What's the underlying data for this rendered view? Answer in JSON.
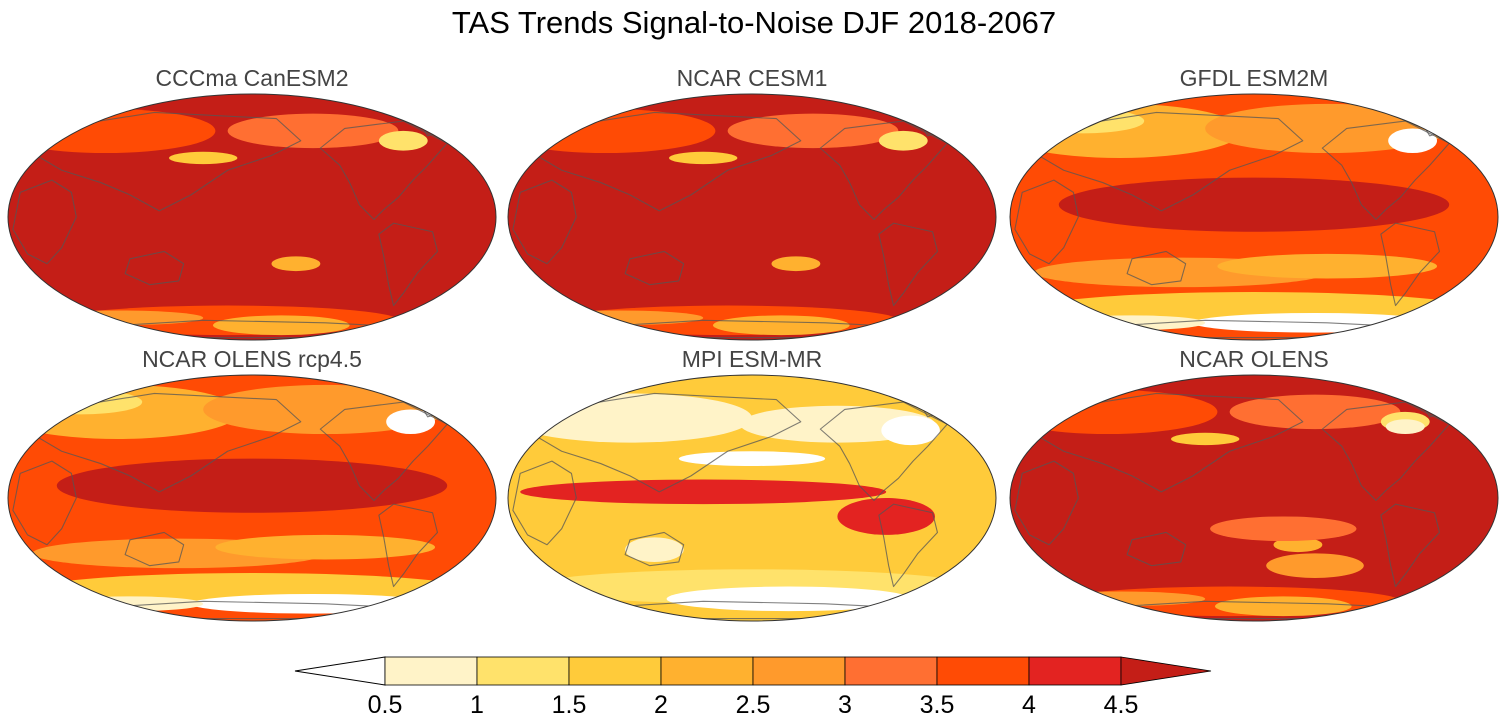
{
  "chart_data": {
    "type": "heatmap",
    "title": "TAS Trends Signal-to-Noise DJF 2018-2067",
    "panels": [
      {
        "title": "CCCma CanESM2",
        "variant": "high"
      },
      {
        "title": "NCAR CESM1",
        "variant": "high"
      },
      {
        "title": "GFDL ESM2M",
        "variant": "medium"
      },
      {
        "title": "NCAR OLENS rcp4.5",
        "variant": "medium"
      },
      {
        "title": "MPI ESM-MR",
        "variant": "low"
      },
      {
        "title": "NCAR OLENS",
        "variant": "high"
      }
    ],
    "colorbar": {
      "levels": [
        "0.5",
        "1",
        "1.5",
        "2",
        "2.5",
        "3",
        "3.5",
        "4",
        "4.5"
      ],
      "colors": [
        "#ffffff",
        "#fff3c8",
        "#ffe26b",
        "#ffcb3a",
        "#ffb12f",
        "#ff9a2c",
        "#ff6f32",
        "#ff4b05",
        "#e32321",
        "#c41e17"
      ],
      "extend": "both"
    }
  }
}
